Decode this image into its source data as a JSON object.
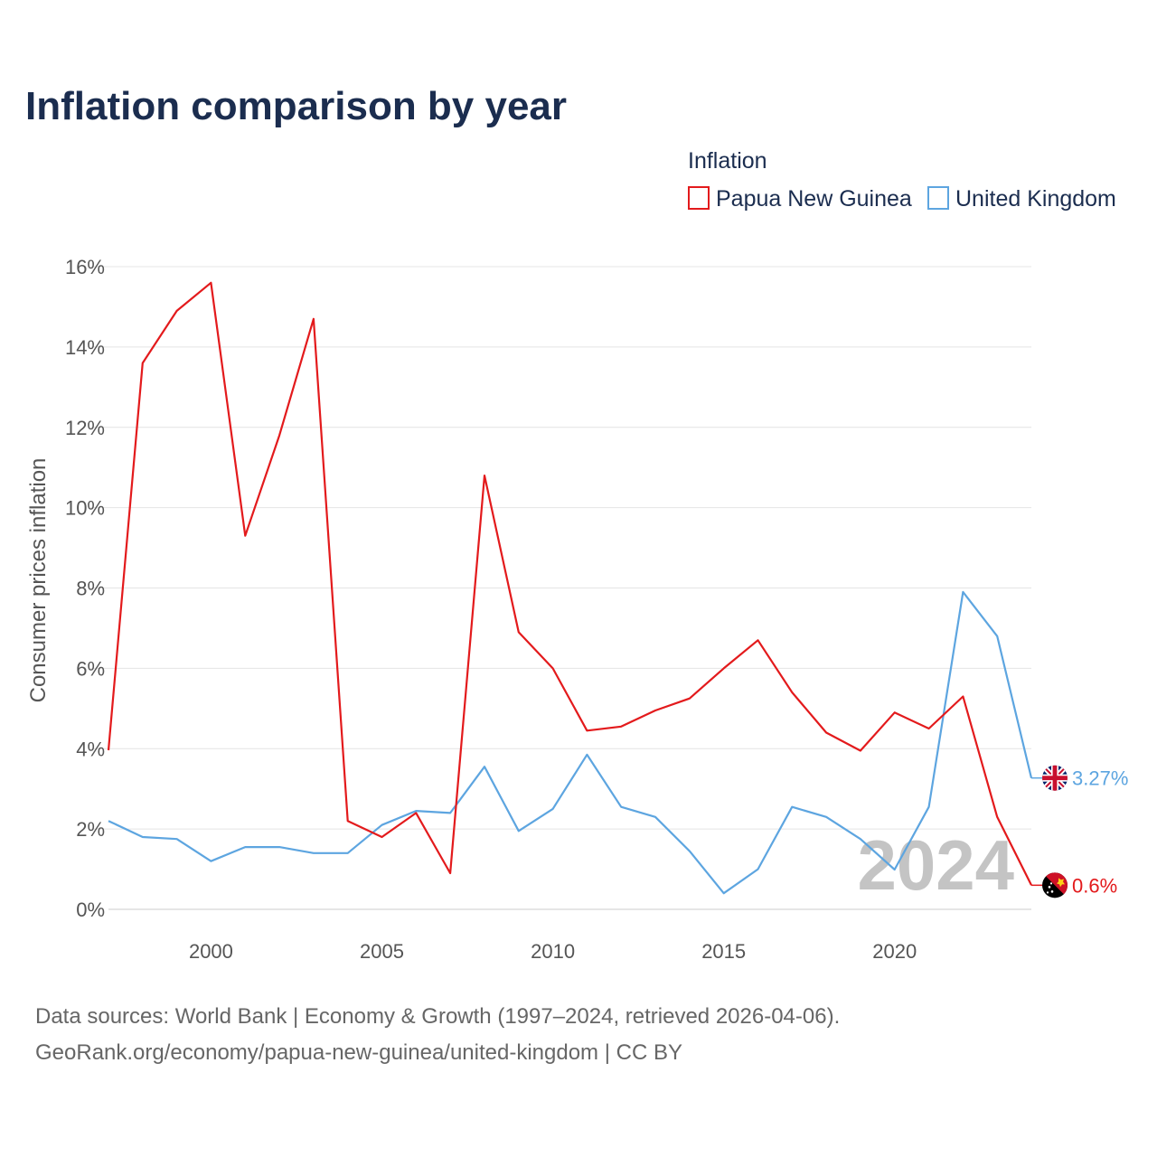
{
  "chart_data": {
    "type": "line",
    "title": "Inflation comparison by year",
    "xlabel": "",
    "ylabel": "Consumer prices inflation",
    "legend_title": "Inflation",
    "legend_position": "top-right",
    "x": [
      1997,
      1998,
      1999,
      2000,
      2001,
      2002,
      2003,
      2004,
      2005,
      2006,
      2007,
      2008,
      2009,
      2010,
      2011,
      2012,
      2013,
      2014,
      2015,
      2016,
      2017,
      2018,
      2019,
      2020,
      2021,
      2022,
      2023,
      2024
    ],
    "xlim": [
      1997,
      2024
    ],
    "x_ticks": [
      "2000",
      "2005",
      "2010",
      "2015",
      "2020"
    ],
    "ylim": [
      0,
      16
    ],
    "y_ticks": [
      "0%",
      "2%",
      "4%",
      "6%",
      "8%",
      "10%",
      "12%",
      "14%",
      "16%"
    ],
    "grid": true,
    "series": [
      {
        "name": "Papua New Guinea",
        "color": "#e31a1c",
        "values": [
          3.96,
          13.6,
          14.9,
          15.6,
          9.3,
          11.8,
          14.7,
          2.2,
          1.8,
          2.4,
          0.9,
          10.8,
          6.9,
          6.0,
          4.45,
          4.55,
          4.95,
          5.25,
          6.0,
          6.7,
          5.4,
          4.4,
          3.95,
          4.9,
          4.5,
          5.3,
          2.3,
          0.6
        ],
        "end_label": "0.6%",
        "flag_icon": "papua-new-guinea-flag-icon"
      },
      {
        "name": "United Kingdom",
        "color": "#5da5e0",
        "values": [
          2.2,
          1.8,
          1.75,
          1.2,
          1.55,
          1.55,
          1.4,
          1.4,
          2.1,
          2.45,
          2.4,
          3.55,
          1.95,
          2.5,
          3.85,
          2.55,
          2.3,
          1.45,
          0.4,
          1.0,
          2.55,
          2.3,
          1.75,
          0.99,
          2.55,
          7.9,
          6.8,
          3.27
        ],
        "end_label": "3.27%",
        "flag_icon": "united-kingdom-flag-icon"
      }
    ],
    "watermark_year": "2024"
  },
  "footer": {
    "line1": "Data sources: World Bank | Economy & Growth (1997–2024, retrieved 2026-04-06).",
    "line2": "GeoRank.org/economy/papua-new-guinea/united-kingdom | CC BY"
  }
}
